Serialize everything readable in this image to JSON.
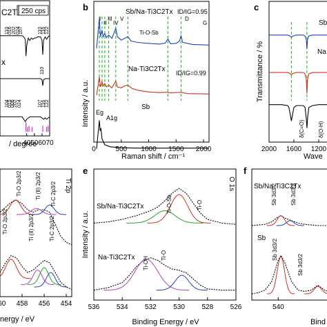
{
  "chart_data": [
    {
      "id": "a",
      "type": "line",
      "panel_label": "",
      "scale_label": "250 cps",
      "xlabel": "/ degree",
      "ylabel": "",
      "xlim": [
        5,
        70
      ],
      "xticks": [
        40,
        50,
        60,
        70
      ],
      "top_label": "C2Tx",
      "mid_label": "x",
      "peak_labels_top": [
        "110",
        "016",
        "202",
        "024",
        "107",
        "110",
        "116",
        "122"
      ],
      "peak_labels_mid": [
        "110"
      ],
      "peak_labels_bot": [
        "104",
        "015",
        "006",
        "202",
        "024",
        "107",
        "116",
        "122"
      ],
      "series": [
        {
          "color": "#000000",
          "x": [
            5,
            20,
            34,
            36,
            38,
            39,
            40,
            42,
            44,
            46,
            48,
            50,
            52,
            54,
            56,
            58,
            60,
            61,
            62,
            64,
            66,
            68,
            70
          ],
          "y": [
            0.16,
            0.16,
            0.16,
            0.17,
            0.19,
            0.33,
            0.24,
            0.18,
            0.2,
            0.18,
            0.19,
            0.18,
            0.18,
            0.17,
            0.17,
            0.17,
            0.2,
            0.32,
            0.2,
            0.17,
            0.19,
            0.17,
            0.16
          ]
        },
        {
          "color": "#000000",
          "x": [
            5,
            20,
            34,
            40,
            50,
            56,
            58,
            60,
            61,
            62,
            64,
            70
          ],
          "y": [
            0.52,
            0.52,
            0.52,
            0.52,
            0.52,
            0.52,
            0.52,
            0.53,
            0.58,
            0.53,
            0.52,
            0.52
          ]
        },
        {
          "color": "#000000",
          "x": [
            5,
            20,
            34,
            36,
            38,
            40,
            42,
            44,
            46,
            48,
            50,
            52,
            54,
            56,
            58,
            60,
            62,
            64,
            66,
            68,
            70
          ],
          "y": [
            0.84,
            0.84,
            0.84,
            0.86,
            0.88,
            0.86,
            0.85,
            0.84,
            0.84,
            0.84,
            0.84,
            0.84,
            0.84,
            0.84,
            0.84,
            0.85,
            0.86,
            0.85,
            0.86,
            0.85,
            0.84
          ]
        }
      ],
      "reference_sticks": {
        "color": "#cc33cc",
        "x": [
          39,
          41,
          43,
          47,
          61,
          66,
          68
        ],
        "height": [
          0.08,
          0.04,
          0.05,
          0.04,
          0.05,
          0.04,
          0.05
        ]
      }
    },
    {
      "id": "b",
      "type": "line",
      "panel_label": "b",
      "xlabel": "Raman shift / cm⁻¹",
      "ylabel": "Intensity / a.u.",
      "xlim": [
        0,
        2100
      ],
      "xticks": [
        0,
        500,
        1000,
        1500,
        2000
      ],
      "series_labels": [
        "Sb/Na-Ti3C2Tx",
        "Na-Ti3C2Tx",
        "Sb"
      ],
      "ratio_labels": [
        "ID/IG=0.95",
        "ID/IG=0.99"
      ],
      "peak_labels": [
        "I",
        "II",
        "III",
        "IV",
        "V",
        "Ti-O-Sb",
        "D",
        "G"
      ],
      "mode_labels": [
        "Eg",
        "A1g"
      ],
      "dashed_lines_x": [
        100,
        150,
        200,
        270,
        400,
        620,
        1350,
        1590
      ],
      "series": [
        {
          "name": "Sb/Na-Ti3C2Tx",
          "color": "#1f3fbf",
          "x": [
            50,
            100,
            120,
            150,
            170,
            200,
            230,
            270,
            330,
            400,
            430,
            500,
            560,
            620,
            680,
            800,
            1000,
            1200,
            1300,
            1350,
            1400,
            1500,
            1560,
            1590,
            1620,
            1800,
            2100
          ],
          "y": [
            0.0,
            0.9,
            0.35,
            0.55,
            0.35,
            0.45,
            0.32,
            0.4,
            0.3,
            0.6,
            0.35,
            0.25,
            0.3,
            0.35,
            0.22,
            0.18,
            0.15,
            0.13,
            0.16,
            0.28,
            0.14,
            0.15,
            0.22,
            0.38,
            0.18,
            0.12,
            0.1
          ]
        },
        {
          "name": "Na-Ti3C2Tx",
          "color": "#d03020",
          "x": [
            50,
            100,
            120,
            150,
            170,
            200,
            230,
            270,
            330,
            400,
            430,
            500,
            560,
            620,
            700,
            800,
            1000,
            1200,
            1350,
            1400,
            1590,
            1700,
            2100
          ],
          "y": [
            0.0,
            0.55,
            0.25,
            0.4,
            0.28,
            0.35,
            0.25,
            0.3,
            0.22,
            0.42,
            0.25,
            0.22,
            0.28,
            0.3,
            0.2,
            0.15,
            0.1,
            0.08,
            0.09,
            0.07,
            0.09,
            0.05,
            0.04
          ]
        },
        {
          "name": "Sb",
          "color": "#000000",
          "x": [
            50,
            100,
            115,
            130,
            150,
            200,
            300,
            500,
            800,
            1200,
            1600,
            2100
          ],
          "y": [
            0.0,
            0.85,
            0.55,
            0.6,
            0.3,
            0.12,
            0.06,
            0.03,
            0.02,
            0.02,
            0.02,
            0.02
          ]
        }
      ]
    },
    {
      "id": "c",
      "type": "line",
      "panel_label": "c",
      "xlabel": "Wave",
      "ylabel": "Transmittance / %",
      "xlim": [
        2000,
        1000
      ],
      "xticks": [
        2000,
        1600,
        1200
      ],
      "series_labels": [
        "Sb",
        "Na"
      ],
      "band_labels": [
        "δ(C=O)",
        "δ(O-H)"
      ],
      "dashed_lines_x": [
        1640,
        1390
      ],
      "series": [
        {
          "color": "#1f3fbf",
          "x": [
            2000,
            1800,
            1700,
            1660,
            1640,
            1620,
            1560,
            1450,
            1420,
            1400,
            1390,
            1380,
            1360,
            1300,
            1200,
            1000
          ],
          "y": [
            0.0,
            0.0,
            0.0,
            0.02,
            0.05,
            0.02,
            0.0,
            0.0,
            0.02,
            0.1,
            0.3,
            0.1,
            0.02,
            0.0,
            0.0,
            0.0
          ]
        },
        {
          "color": "#d03020",
          "x": [
            2000,
            1800,
            1700,
            1660,
            1640,
            1620,
            1560,
            1450,
            1420,
            1400,
            1390,
            1380,
            1360,
            1300,
            1200,
            1000
          ],
          "y": [
            0.0,
            0.0,
            0.0,
            0.02,
            0.05,
            0.02,
            0.0,
            0.0,
            0.03,
            0.15,
            0.45,
            0.15,
            0.03,
            0.0,
            0.0,
            0.0
          ]
        },
        {
          "color": "#000000",
          "x": [
            2000,
            1800,
            1700,
            1680,
            1660,
            1640,
            1620,
            1600,
            1560,
            1450,
            1420,
            1400,
            1390,
            1380,
            1360,
            1300,
            1200,
            1000
          ],
          "y": [
            0.0,
            0.0,
            0.02,
            0.06,
            0.2,
            0.35,
            0.2,
            0.06,
            0.02,
            0.02,
            0.06,
            0.3,
            0.5,
            0.3,
            0.06,
            0.02,
            0.0,
            0.0
          ]
        }
      ]
    },
    {
      "id": "d",
      "type": "line",
      "panel_label": "",
      "corner_label": "Ti 2p",
      "xlabel": "nergy / eV",
      "ylabel": "",
      "xlim": [
        460,
        453.5
      ],
      "xticks": [
        460,
        458,
        456,
        454
      ],
      "peak_labels": [
        "Ti-O 2p3/2",
        "Ti (II) 2p3/2",
        "Ti-C 2p3/2",
        "Ti-O 2p3/2",
        "Ti (II) 2p3/2",
        "Ti-C 2p3/2"
      ],
      "series": [
        {
          "color": "#000000",
          "x": [
            460,
            459.5,
            459,
            458.5,
            458,
            457.5,
            457,
            456.5,
            456,
            455.5,
            455,
            454.5,
            454,
            453.5
          ],
          "y": [
            0.7,
            0.74,
            0.78,
            0.8,
            0.77,
            0.72,
            0.7,
            0.72,
            0.72,
            0.7,
            0.6,
            0.5,
            0.45,
            0.43
          ]
        },
        {
          "color": "#000000",
          "x": [
            460,
            459.5,
            459,
            458.5,
            458,
            457.5,
            457,
            456.5,
            456,
            455.5,
            455,
            454.5,
            454,
            453.5
          ],
          "y": [
            0.2,
            0.28,
            0.34,
            0.32,
            0.25,
            0.2,
            0.22,
            0.26,
            0.3,
            0.28,
            0.2,
            0.12,
            0.08,
            0.06
          ]
        }
      ],
      "components": [
        {
          "color": "#d03020",
          "center": 458.6,
          "width": 0.6,
          "height": 0.12,
          "base": 0.68
        },
        {
          "color": "#b040c0",
          "center": 456.7,
          "width": 0.6,
          "height": 0.05,
          "base": 0.68
        },
        {
          "color": "#1f3fbf",
          "center": 455.5,
          "width": 0.5,
          "height": 0.08,
          "base": 0.68
        },
        {
          "color": "#d03020",
          "center": 459.0,
          "width": 0.6,
          "height": 0.16,
          "base": 0.15
        },
        {
          "color": "#b040c0",
          "center": 456.6,
          "width": 0.5,
          "height": 0.12,
          "base": 0.1
        },
        {
          "color": "#2aa02a",
          "center": 456.0,
          "width": 0.5,
          "height": 0.14,
          "base": 0.1
        },
        {
          "color": "#1f3fbf",
          "center": 455.4,
          "width": 0.5,
          "height": 0.12,
          "base": 0.08
        }
      ]
    },
    {
      "id": "e",
      "type": "line",
      "panel_label": "e",
      "corner_label": "O 1s",
      "xlabel": "Binding Energy / eV",
      "ylabel": "Intensity / a.u.",
      "xlim": [
        536,
        526
      ],
      "xticks": [
        536,
        534,
        532,
        530,
        528,
        526
      ],
      "series_labels": [
        "Sb/Na-Ti3C2Tx",
        "Na-Ti3C2Tx"
      ],
      "peak_labels": [
        "Ti-O-Sb",
        "Ti-O",
        "Ti-OH",
        "Ti-O"
      ],
      "series": [
        {
          "color": "#000000",
          "x": [
            536,
            535,
            534,
            533,
            532,
            531.5,
            531,
            530.5,
            530,
            529.5,
            529,
            528.5,
            528,
            527,
            526
          ],
          "y": [
            0.62,
            0.63,
            0.65,
            0.68,
            0.72,
            0.75,
            0.8,
            0.86,
            0.9,
            0.86,
            0.78,
            0.7,
            0.65,
            0.62,
            0.61
          ]
        },
        {
          "color": "#000000",
          "x": [
            536,
            535,
            534,
            533.5,
            533,
            532.5,
            532,
            531.5,
            531,
            530.5,
            530,
            529.5,
            529,
            528.5,
            528,
            527,
            526
          ],
          "y": [
            0.08,
            0.1,
            0.14,
            0.2,
            0.27,
            0.32,
            0.34,
            0.32,
            0.28,
            0.25,
            0.24,
            0.22,
            0.17,
            0.12,
            0.09,
            0.08,
            0.08
          ]
        }
      ],
      "components": [
        {
          "color": "#d03020",
          "center": 530.0,
          "width": 0.75,
          "height": 0.23,
          "base": 0.62
        },
        {
          "color": "#2aa02a",
          "center": 531.0,
          "width": 0.9,
          "height": 0.1,
          "base": 0.62
        },
        {
          "color": "#b040c0",
          "center": 532.3,
          "width": 1.0,
          "height": 0.25,
          "base": 0.08
        },
        {
          "color": "#1f3fbf",
          "center": 529.8,
          "width": 0.6,
          "height": 0.12,
          "base": 0.08
        }
      ]
    },
    {
      "id": "f",
      "type": "line",
      "panel_label": "f",
      "xlabel": "Bind",
      "ylabel": "",
      "xlim": [
        542,
        536
      ],
      "xticks": [
        540
      ],
      "series_labels": [
        "Sb/Na-Ti3C2Tx",
        "Sb"
      ],
      "peak_labels": [
        "Sb 3d3/2",
        "Sb 3d3/2",
        "Sb 3d3/2",
        "Sb 3d3/2"
      ],
      "series": [
        {
          "color": "#000000",
          "x": [
            542,
            541,
            540.5,
            540,
            539.8,
            539.5,
            539,
            538.5,
            538,
            537,
            536
          ],
          "y": [
            0.6,
            0.61,
            0.63,
            0.67,
            0.68,
            0.66,
            0.64,
            0.62,
            0.61,
            0.6,
            0.6
          ]
        },
        {
          "color": "#000000",
          "x": [
            542,
            541.5,
            541,
            540.5,
            540,
            539.8,
            539.5,
            539,
            538.5,
            538,
            537.5,
            537,
            536.5,
            536
          ],
          "y": [
            0.05,
            0.06,
            0.08,
            0.15,
            0.32,
            0.36,
            0.3,
            0.15,
            0.08,
            0.07,
            0.08,
            0.12,
            0.08,
            0.06
          ]
        }
      ],
      "components": [
        {
          "color": "#d03020",
          "center": 539.8,
          "width": 0.35,
          "height": 0.08,
          "base": 0.6
        },
        {
          "color": "#1f3fbf",
          "center": 539.1,
          "width": 0.35,
          "height": 0.04,
          "base": 0.6
        },
        {
          "color": "#d03020",
          "center": 539.8,
          "width": 0.35,
          "height": 0.3,
          "base": 0.05
        },
        {
          "color": "#d03020",
          "center": 537.0,
          "width": 0.35,
          "height": 0.06,
          "base": 0.05
        }
      ]
    }
  ]
}
